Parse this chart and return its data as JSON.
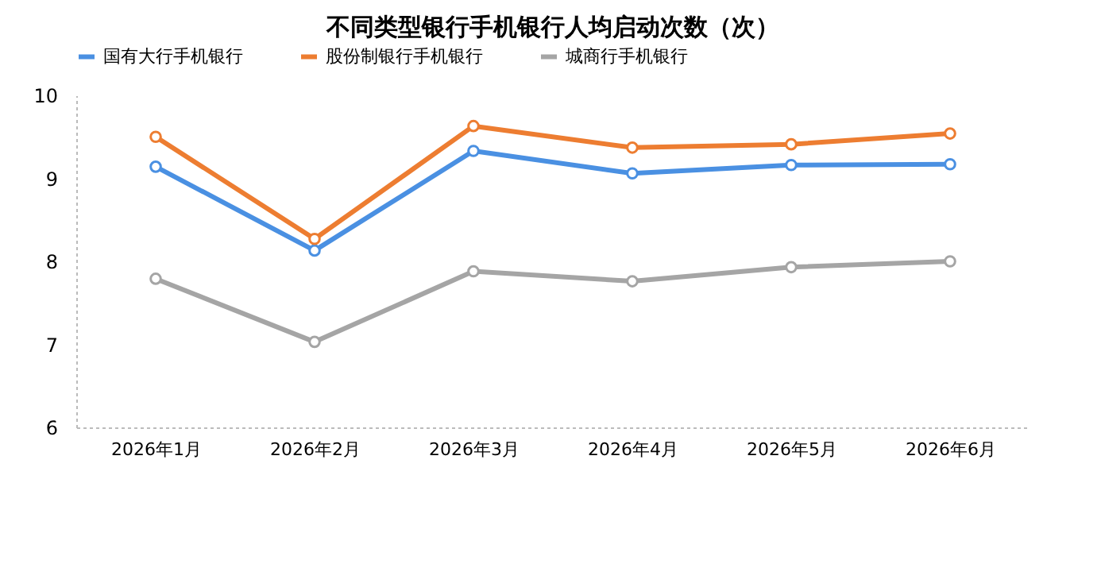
{
  "chart_data": {
    "type": "line",
    "title": "不同类型银行手机银行人均启动次数（次）",
    "categories": [
      "2026年1月",
      "2026年2月",
      "2026年3月",
      "2026年4月",
      "2026年5月",
      "2026年6月"
    ],
    "series": [
      {
        "name": "国有大行手机银行",
        "color": "#4a90e2",
        "values": [
          9.14,
          8.13,
          9.33,
          9.06,
          9.16,
          9.17
        ]
      },
      {
        "name": "股份制银行手机银行",
        "color": "#ed7d31",
        "values": [
          9.5,
          8.27,
          9.63,
          9.37,
          9.41,
          9.54
        ]
      },
      {
        "name": "城商行手机银行",
        "color": "#a5a5a5",
        "values": [
          7.79,
          7.03,
          7.88,
          7.76,
          7.93,
          8.0
        ]
      }
    ],
    "ylim": [
      6,
      10
    ],
    "yticks": [
      6,
      7,
      8,
      9,
      10
    ],
    "grid": false,
    "legend": "top",
    "marker": "circle",
    "line_style": "solid"
  }
}
